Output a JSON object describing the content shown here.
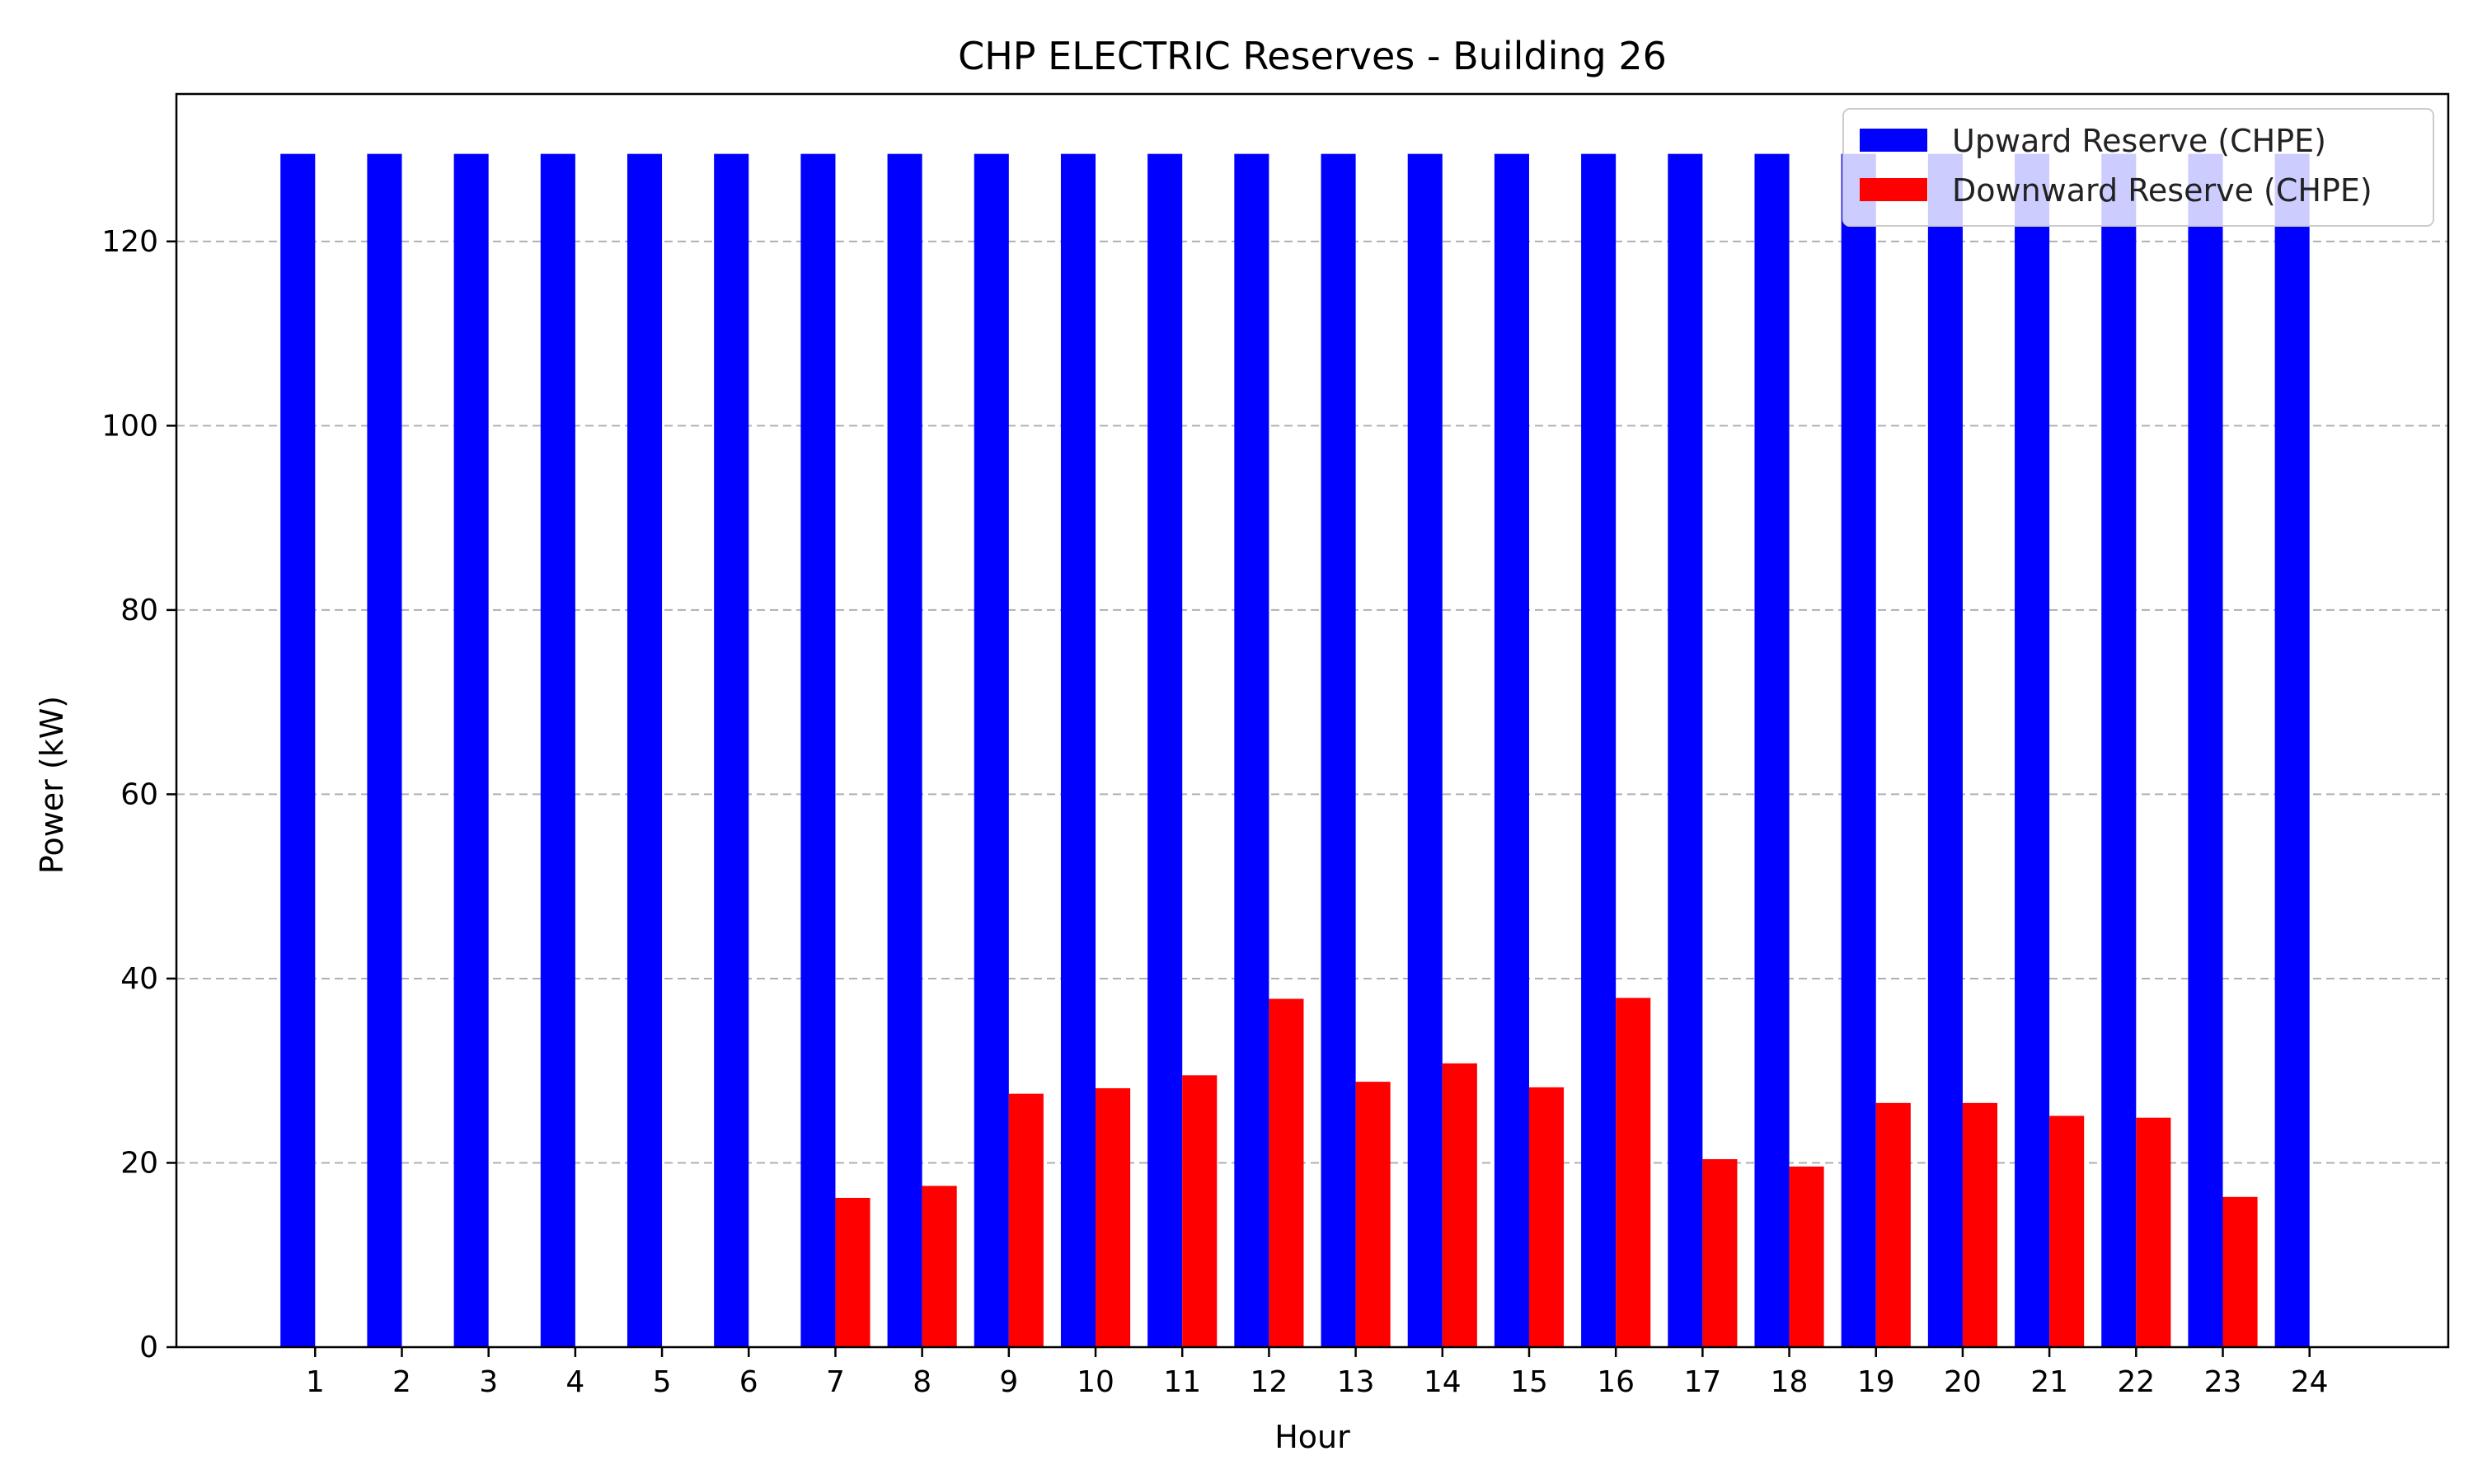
{
  "chart_data": {
    "type": "bar",
    "title": "CHP ELECTRIC Reserves - Building 26",
    "xlabel": "Hour",
    "ylabel": "Power (kW)",
    "categories": [
      "1",
      "2",
      "3",
      "4",
      "5",
      "6",
      "7",
      "8",
      "9",
      "10",
      "11",
      "12",
      "13",
      "14",
      "15",
      "16",
      "17",
      "18",
      "19",
      "20",
      "21",
      "22",
      "23",
      "24"
    ],
    "series": [
      {
        "name": "Upward Reserve (CHPE)",
        "color": "#0000ff",
        "values": [
          129.5,
          129.5,
          129.5,
          129.5,
          129.5,
          129.5,
          129.5,
          129.5,
          129.5,
          129.5,
          129.5,
          129.5,
          129.5,
          129.5,
          129.5,
          129.5,
          129.5,
          129.5,
          129.5,
          129.5,
          129.5,
          129.5,
          129.5,
          129.5
        ]
      },
      {
        "name": "Downward Reserve (CHPE)",
        "color": "#ff0000",
        "values": [
          0,
          0,
          0,
          0,
          0,
          0,
          16.2,
          17.5,
          27.5,
          28.1,
          29.5,
          37.8,
          28.8,
          30.8,
          28.2,
          37.9,
          20.4,
          19.6,
          26.5,
          26.5,
          25.1,
          24.9,
          16.3,
          0
        ]
      }
    ],
    "ylim": [
      0,
      136
    ],
    "yticks": [
      0,
      20,
      40,
      60,
      80,
      100,
      120
    ],
    "grid": "y-dashed",
    "legend": "top-right"
  }
}
